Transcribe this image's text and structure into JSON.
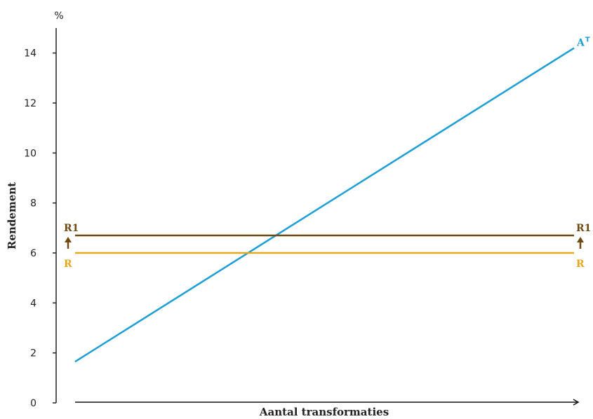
{
  "chart_data": {
    "type": "line",
    "unit_label": "%",
    "ylabel": "Rendement",
    "xlabel": "Aantal transformaties",
    "ylim": [
      0,
      15
    ],
    "y_ticks": [
      "0",
      "2",
      "4",
      "6",
      "8",
      "10",
      "12",
      "14"
    ],
    "y_tick_values": [
      0,
      2,
      4,
      6,
      8,
      10,
      12,
      14
    ],
    "xlim": [
      0,
      1
    ],
    "grid": false,
    "series": [
      {
        "name": "A",
        "superscript": "T",
        "color": "#1b9fd6",
        "x": [
          0,
          1
        ],
        "values": [
          1.65,
          14.2
        ],
        "label_side": "right"
      },
      {
        "name": "R1",
        "color": "#6e4a12",
        "x": [
          0,
          1
        ],
        "values": [
          6.7,
          6.7
        ],
        "label_side": "both",
        "arrow": "up"
      },
      {
        "name": "R",
        "color": "#e5a81c",
        "x": [
          0,
          1
        ],
        "values": [
          6.0,
          6.0
        ],
        "label_side": "both"
      }
    ]
  }
}
